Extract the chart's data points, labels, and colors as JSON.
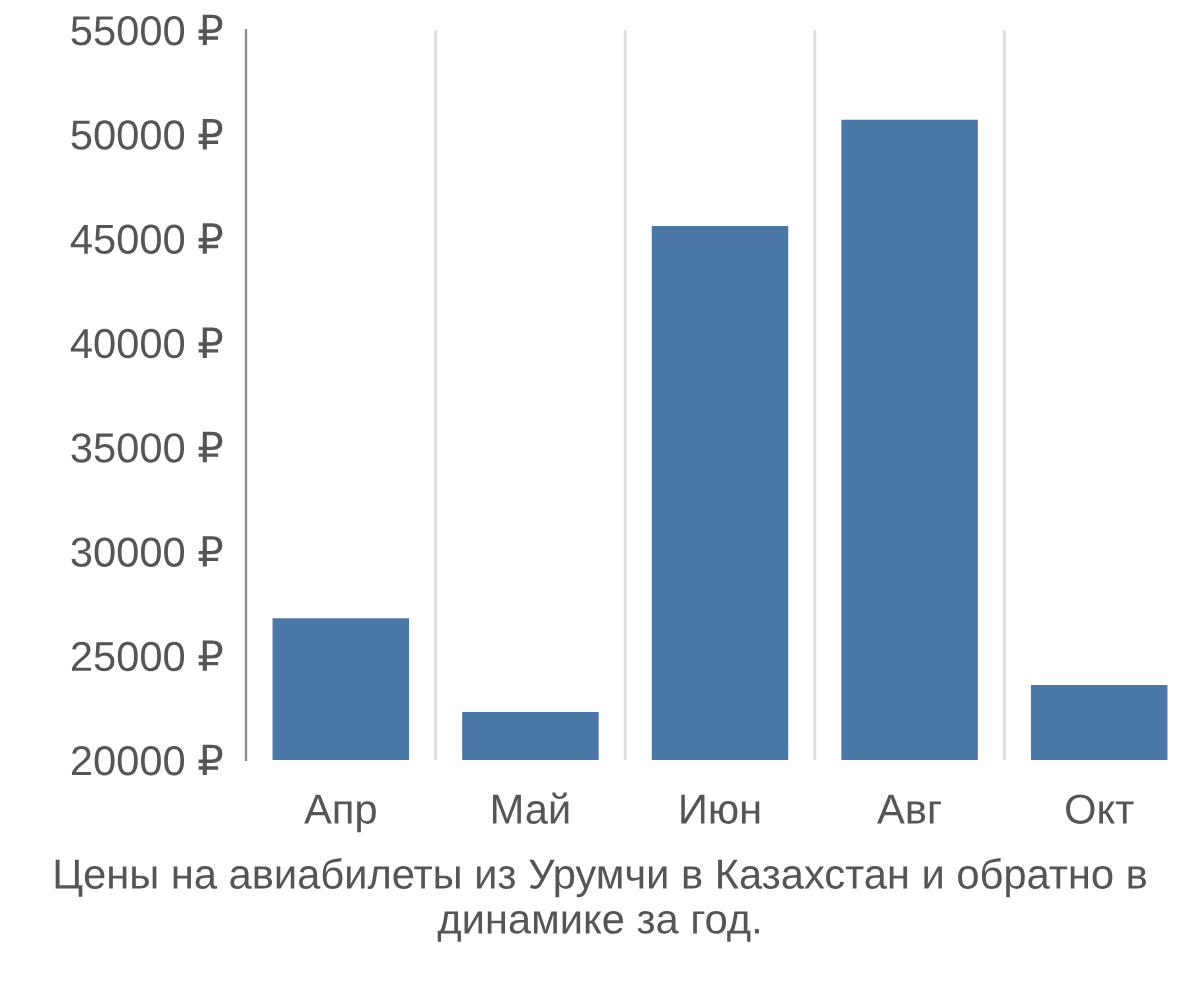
{
  "chart_data": {
    "type": "bar",
    "categories": [
      "Апр",
      "Май",
      "Июн",
      "Авг",
      "Окт"
    ],
    "values": [
      26800,
      22300,
      45600,
      50700,
      23600
    ],
    "color": "#4c78a8",
    "ylim": [
      20000,
      55000
    ],
    "yticks": [
      {
        "value": 20000,
        "label": "20000 ₽"
      },
      {
        "value": 25000,
        "label": "25000 ₽"
      },
      {
        "value": 30000,
        "label": "30000 ₽"
      },
      {
        "value": 35000,
        "label": "35000 ₽"
      },
      {
        "value": 40000,
        "label": "40000 ₽"
      },
      {
        "value": 45000,
        "label": "45000 ₽"
      },
      {
        "value": 50000,
        "label": "50000 ₽"
      },
      {
        "value": 55000,
        "label": "55000 ₽"
      }
    ],
    "grid": "x",
    "annotations": [
      "Цены на авиабилеты из Урумчи в Казахстан и обратно в динамике за год."
    ]
  }
}
